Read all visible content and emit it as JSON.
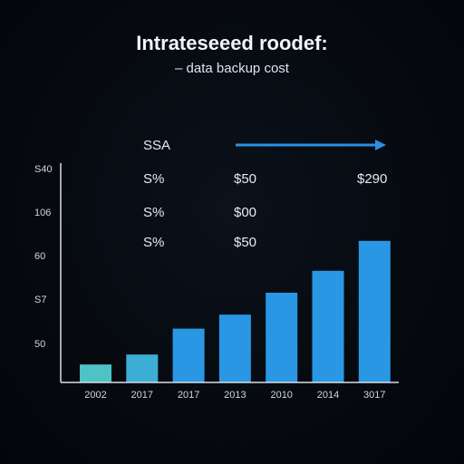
{
  "chart_data": {
    "type": "bar",
    "title": "Intrateseeed roodef:",
    "subtitle": "–   data backup cost",
    "legend_label": "SSA",
    "categories": [
      "2002",
      "2017",
      "2017",
      "2013",
      "2010",
      "2014",
      "3017"
    ],
    "values": [
      9,
      14,
      27,
      34,
      45,
      56,
      71
    ],
    "ylim": [
      0,
      110
    ],
    "y_ticks": [
      "S40",
      "106",
      "60",
      "S7",
      "50"
    ],
    "annotations": [
      [
        "S%",
        "$50",
        "$290"
      ],
      [
        "S%",
        "$00"
      ],
      [
        "S%",
        "$50"
      ]
    ],
    "colors": {
      "bars_low": "#4ec3c6",
      "bars_high": "#2a97e4",
      "arrow": "#2c8fe0",
      "axis": "#d8dee6"
    },
    "grid": false,
    "xlabel": "",
    "ylabel": ""
  }
}
